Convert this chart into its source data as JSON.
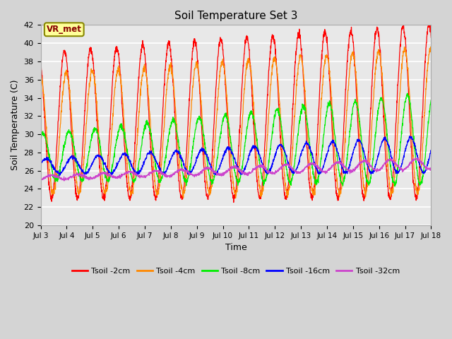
{
  "title": "Soil Temperature Set 3",
  "xlabel": "Time",
  "ylabel": "Soil Temperature (C)",
  "ylim": [
    20,
    42
  ],
  "yticks": [
    20,
    22,
    24,
    26,
    28,
    30,
    32,
    34,
    36,
    38,
    40,
    42
  ],
  "xtick_labels": [
    "Jul 3",
    "Jul 4",
    "Jul 5",
    "Jul 6",
    "Jul 7",
    "Jul 8",
    "Jul 9",
    "Jul 10",
    "Jul 11",
    "Jul 12",
    "Jul 13",
    "Jul 14",
    "Jul 15",
    "Jul 16",
    "Jul 17",
    "Jul 18"
  ],
  "series_colors": [
    "#ff0000",
    "#ff8800",
    "#00ee00",
    "#0000ff",
    "#cc44cc"
  ],
  "series_labels": [
    "Tsoil -2cm",
    "Tsoil -4cm",
    "Tsoil -8cm",
    "Tsoil -16cm",
    "Tsoil -32cm"
  ],
  "annotation_text": "VR_met",
  "annotation_bg": "#ffff99",
  "annotation_border": "#888800",
  "fig_facecolor": "#d4d4d4",
  "ax_facecolor": "#e8e8e8",
  "n_days": 15,
  "samples_per_day": 144
}
